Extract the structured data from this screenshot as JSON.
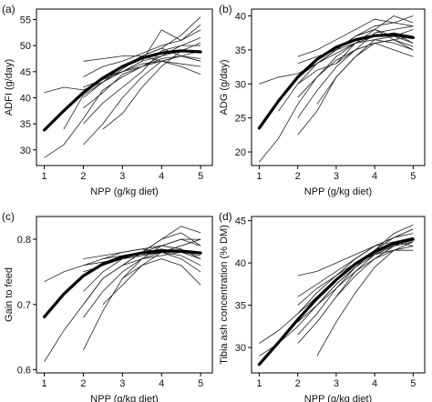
{
  "chart_data": [
    {
      "panel_label": "(a)",
      "type": "line",
      "xlabel": "NPP (g/kg diet)",
      "ylabel": "ADFI (g/day)",
      "xlim": [
        0.8,
        5.3
      ],
      "ylim": [
        27,
        57
      ],
      "xticks": [
        1,
        2,
        3,
        4,
        5
      ],
      "yticks": [
        30,
        35,
        40,
        45,
        50,
        55
      ],
      "grid": false,
      "fitted_curve": {
        "x": [
          1,
          1.5,
          2,
          2.5,
          3,
          3.5,
          4,
          4.5,
          5
        ],
        "y": [
          33.8,
          37.5,
          41.0,
          43.8,
          46.0,
          47.6,
          48.6,
          49.0,
          48.8
        ]
      },
      "individual_series": [
        {
          "x": [
            1,
            1.5,
            2,
            2.5,
            3,
            3.5,
            4,
            4.5,
            5
          ],
          "y": [
            28.5,
            31,
            36,
            41.5,
            44,
            46,
            47.5,
            48,
            49
          ]
        },
        {
          "x": [
            1,
            1.5,
            2,
            2.5,
            3,
            3.5,
            4,
            4.5,
            5
          ],
          "y": [
            41,
            42,
            41.5,
            43,
            45,
            46.5,
            47,
            48,
            47
          ]
        },
        {
          "x": [
            1.5,
            2,
            2.5,
            3,
            3.5,
            4,
            4.5,
            5
          ],
          "y": [
            34,
            40.5,
            43,
            45.5,
            48,
            49.5,
            52,
            55.5
          ]
        },
        {
          "x": [
            2,
            2.5,
            3,
            3.5,
            4,
            4.5,
            5
          ],
          "y": [
            31,
            35,
            40,
            44,
            47,
            48,
            47.5
          ]
        },
        {
          "x": [
            2,
            2.5,
            3,
            3.5,
            4,
            4.5,
            5
          ],
          "y": [
            47,
            47.5,
            48,
            48,
            47,
            46,
            44.5
          ]
        },
        {
          "x": [
            2,
            2.5,
            3,
            3.5,
            4,
            4.5,
            5
          ],
          "y": [
            44,
            46,
            47,
            48.5,
            50,
            51,
            53
          ]
        },
        {
          "x": [
            2,
            2.5,
            3,
            3.5,
            4,
            4.5,
            5
          ],
          "y": [
            38,
            41,
            44.5,
            46,
            48,
            50,
            51.5
          ]
        },
        {
          "x": [
            2,
            2.5,
            3,
            3.5,
            4,
            4.5,
            5
          ],
          "y": [
            42,
            43.5,
            45,
            46,
            47,
            46.5,
            46
          ]
        },
        {
          "x": [
            2,
            2.5,
            3,
            3.5,
            4,
            4.5,
            5
          ],
          "y": [
            35,
            39,
            42,
            45,
            49,
            50,
            50
          ]
        },
        {
          "x": [
            2.5,
            3,
            3.5,
            4,
            4.5,
            5
          ],
          "y": [
            34,
            37,
            42,
            46,
            49,
            50.5
          ]
        },
        {
          "x": [
            2.5,
            3,
            3.5,
            4,
            4.5,
            5
          ],
          "y": [
            44,
            45,
            47,
            48,
            49,
            49
          ]
        },
        {
          "x": [
            3,
            3.5,
            4,
            4.5,
            5
          ],
          "y": [
            45,
            47,
            53,
            51,
            54
          ]
        },
        {
          "x": [
            2,
            2.5,
            3,
            3.5,
            4,
            4.5,
            5
          ],
          "y": [
            40,
            43,
            46,
            48,
            49.5,
            48,
            47
          ]
        }
      ]
    },
    {
      "panel_label": "(b)",
      "type": "line",
      "xlabel": "NPP (g/kg diet)",
      "ylabel": "ADG (g/day)",
      "xlim": [
        0.8,
        5.3
      ],
      "ylim": [
        18,
        41
      ],
      "xticks": [
        1,
        2,
        3,
        4,
        5
      ],
      "yticks": [
        20,
        25,
        30,
        35,
        40
      ],
      "grid": false,
      "fitted_curve": {
        "x": [
          1,
          1.5,
          2,
          2.5,
          3,
          3.5,
          4,
          4.5,
          5
        ],
        "y": [
          23.5,
          27.5,
          31.0,
          33.6,
          35.4,
          36.5,
          37.1,
          37.2,
          36.8
        ]
      },
      "individual_series": [
        {
          "x": [
            1,
            1.5,
            2,
            2.5,
            3,
            3.5,
            4,
            4.5,
            5
          ],
          "y": [
            18.5,
            22,
            27,
            31,
            33.5,
            35,
            36,
            36.5,
            37
          ]
        },
        {
          "x": [
            1,
            1.5,
            2,
            2.5,
            3,
            3.5,
            4,
            4.5,
            5
          ],
          "y": [
            30,
            31,
            31.5,
            33,
            34.5,
            36,
            37,
            37.5,
            36
          ]
        },
        {
          "x": [
            1.5,
            2,
            2.5,
            3,
            3.5,
            4,
            4.5,
            5
          ],
          "y": [
            26,
            30,
            33,
            35,
            37,
            38.5,
            39,
            38.5
          ]
        },
        {
          "x": [
            2,
            2.5,
            3,
            3.5,
            4,
            4.5,
            5
          ],
          "y": [
            22.5,
            26,
            31,
            34,
            36,
            36.5,
            35.5
          ]
        },
        {
          "x": [
            2,
            2.5,
            3,
            3.5,
            4,
            4.5,
            5
          ],
          "y": [
            34,
            35,
            36.5,
            38,
            39.5,
            39,
            40
          ]
        },
        {
          "x": [
            2,
            2.5,
            3,
            3.5,
            4,
            4.5,
            5
          ],
          "y": [
            30,
            32,
            33,
            35,
            36,
            35,
            34
          ]
        },
        {
          "x": [
            2,
            2.5,
            3,
            3.5,
            4,
            4.5,
            5
          ],
          "y": [
            28,
            31,
            34,
            36,
            37,
            37.5,
            37
          ]
        },
        {
          "x": [
            2,
            2.5,
            3,
            3.5,
            4,
            4.5,
            5
          ],
          "y": [
            33,
            34,
            35,
            36,
            36.5,
            36,
            35
          ]
        },
        {
          "x": [
            2,
            2.5,
            3,
            3.5,
            4,
            4.5,
            5
          ],
          "y": [
            25,
            29,
            32.5,
            35,
            37.5,
            38,
            38.5
          ]
        },
        {
          "x": [
            2.5,
            3,
            3.5,
            4,
            4.5,
            5
          ],
          "y": [
            27,
            31,
            34,
            36.5,
            37,
            38
          ]
        },
        {
          "x": [
            2.5,
            3,
            3.5,
            4,
            4.5,
            5
          ],
          "y": [
            33,
            35,
            37,
            38,
            37,
            36
          ]
        },
        {
          "x": [
            3,
            3.5,
            4,
            4.5,
            5
          ],
          "y": [
            33,
            36,
            38,
            40,
            39
          ]
        },
        {
          "x": [
            2,
            2.5,
            3,
            3.5,
            4,
            4.5,
            5
          ],
          "y": [
            31,
            33,
            35,
            37,
            38,
            36.5,
            35
          ]
        }
      ]
    },
    {
      "panel_label": "(c)",
      "type": "line",
      "xlabel": "NPP (g/kg diet)",
      "ylabel": "Gain to feed",
      "xlim": [
        0.8,
        5.3
      ],
      "ylim": [
        0.595,
        0.835
      ],
      "xticks": [
        1,
        2,
        3,
        4,
        5
      ],
      "yticks": [
        0.6,
        0.7,
        0.8
      ],
      "grid": false,
      "fitted_curve": {
        "x": [
          1,
          1.5,
          2,
          2.5,
          3,
          3.5,
          4,
          4.5,
          5
        ],
        "y": [
          0.681,
          0.716,
          0.744,
          0.762,
          0.773,
          0.779,
          0.782,
          0.782,
          0.779
        ]
      },
      "individual_series": [
        {
          "x": [
            1,
            1.5,
            2,
            2.5,
            3,
            3.5,
            4,
            4.5,
            5
          ],
          "y": [
            0.612,
            0.66,
            0.7,
            0.74,
            0.76,
            0.77,
            0.775,
            0.78,
            0.78
          ]
        },
        {
          "x": [
            1,
            1.5,
            2,
            2.5,
            3,
            3.5,
            4,
            4.5,
            5
          ],
          "y": [
            0.735,
            0.75,
            0.76,
            0.765,
            0.77,
            0.775,
            0.78,
            0.78,
            0.775
          ]
        },
        {
          "x": [
            2,
            2.5,
            3,
            3.5,
            4,
            4.5,
            5
          ],
          "y": [
            0.63,
            0.69,
            0.74,
            0.77,
            0.79,
            0.8,
            0.8
          ]
        },
        {
          "x": [
            2,
            2.5,
            3,
            3.5,
            4,
            4.5,
            5
          ],
          "y": [
            0.77,
            0.775,
            0.78,
            0.785,
            0.79,
            0.785,
            0.77
          ]
        },
        {
          "x": [
            2,
            2.5,
            3,
            3.5,
            4,
            4.5,
            5
          ],
          "y": [
            0.72,
            0.75,
            0.77,
            0.78,
            0.8,
            0.82,
            0.81
          ]
        },
        {
          "x": [
            2,
            2.5,
            3,
            3.5,
            4,
            4.5,
            5
          ],
          "y": [
            0.68,
            0.72,
            0.75,
            0.77,
            0.78,
            0.775,
            0.76
          ]
        },
        {
          "x": [
            2,
            2.5,
            3,
            3.5,
            4,
            4.5,
            5
          ],
          "y": [
            0.75,
            0.76,
            0.77,
            0.775,
            0.78,
            0.79,
            0.8
          ]
        },
        {
          "x": [
            2,
            2.5,
            3,
            3.5,
            4,
            4.5,
            5
          ],
          "y": [
            0.7,
            0.74,
            0.76,
            0.78,
            0.79,
            0.8,
            0.79
          ]
        },
        {
          "x": [
            2.5,
            3,
            3.5,
            4,
            4.5,
            5
          ],
          "y": [
            0.7,
            0.73,
            0.76,
            0.78,
            0.79,
            0.8
          ]
        },
        {
          "x": [
            2.5,
            3,
            3.5,
            4,
            4.5,
            5
          ],
          "y": [
            0.77,
            0.78,
            0.785,
            0.78,
            0.77,
            0.75
          ]
        },
        {
          "x": [
            3,
            3.5,
            4,
            4.5,
            5
          ],
          "y": [
            0.76,
            0.78,
            0.8,
            0.81,
            0.79
          ]
        },
        {
          "x": [
            3,
            3.5,
            4,
            4.5,
            5
          ],
          "y": [
            0.74,
            0.76,
            0.77,
            0.76,
            0.73
          ]
        },
        {
          "x": [
            2,
            2.5,
            3,
            3.5,
            4,
            4.5,
            5
          ],
          "y": [
            0.76,
            0.77,
            0.775,
            0.78,
            0.785,
            0.78,
            0.77
          ]
        }
      ]
    },
    {
      "panel_label": "(d)",
      "type": "line",
      "xlabel": "NPP (g/kg diet)",
      "ylabel": "Tibia ash concentration (% DM)",
      "xlim": [
        0.8,
        5.3
      ],
      "ylim": [
        27,
        45.5
      ],
      "xticks": [
        1,
        2,
        3,
        4,
        5
      ],
      "yticks": [
        30,
        35,
        40,
        45
      ],
      "grid": false,
      "fitted_curve": {
        "x": [
          1,
          1.5,
          2,
          2.5,
          3,
          3.5,
          4,
          4.5,
          5
        ],
        "y": [
          28.0,
          30.6,
          33.3,
          35.8,
          38.0,
          39.9,
          41.3,
          42.3,
          42.8
        ]
      },
      "individual_series": [
        {
          "x": [
            1,
            1.5,
            2,
            2.5,
            3,
            3.5,
            4,
            4.5,
            5
          ],
          "y": [
            29,
            30.5,
            32.5,
            35,
            37.5,
            39.5,
            41,
            42,
            42.5
          ]
        },
        {
          "x": [
            1,
            1.5,
            2,
            2.5,
            3,
            3.5,
            4,
            4.5,
            5
          ],
          "y": [
            30.5,
            32,
            34,
            36.5,
            38.5,
            40.5,
            42,
            43,
            43.5
          ]
        },
        {
          "x": [
            2,
            2.5,
            3,
            3.5,
            4,
            4.5,
            5
          ],
          "y": [
            30.5,
            33,
            36,
            39,
            41,
            42,
            42.5
          ]
        },
        {
          "x": [
            2,
            2.5,
            3,
            3.5,
            4,
            4.5,
            5
          ],
          "y": [
            38.5,
            39,
            40,
            41,
            42,
            43,
            44
          ]
        },
        {
          "x": [
            2,
            2.5,
            3,
            3.5,
            4,
            4.5,
            5
          ],
          "y": [
            33,
            35,
            37.5,
            39.5,
            41.5,
            42.5,
            43
          ]
        },
        {
          "x": [
            2,
            2.5,
            3,
            3.5,
            4,
            4.5,
            5
          ],
          "y": [
            35,
            37,
            38.5,
            40,
            41,
            41.5,
            41.5
          ]
        },
        {
          "x": [
            2,
            2.5,
            3,
            3.5,
            4,
            4.5,
            5
          ],
          "y": [
            31.5,
            34,
            37,
            39.5,
            41.5,
            43,
            44
          ]
        },
        {
          "x": [
            2,
            2.5,
            3,
            3.5,
            4,
            4.5,
            5
          ],
          "y": [
            36,
            37.5,
            39,
            40.5,
            42,
            42.5,
            42
          ]
        },
        {
          "x": [
            2.5,
            3,
            3.5,
            4,
            4.5,
            5
          ],
          "y": [
            29,
            33,
            36.5,
            39.5,
            41.5,
            42.5
          ]
        },
        {
          "x": [
            2.5,
            3,
            3.5,
            4,
            4.5,
            5
          ],
          "y": [
            35,
            37,
            39,
            40.5,
            41.5,
            42
          ]
        },
        {
          "x": [
            3,
            3.5,
            4,
            4.5,
            5
          ],
          "y": [
            36,
            38.5,
            40.5,
            42,
            43
          ]
        },
        {
          "x": [
            2,
            2.5,
            3,
            3.5,
            4,
            4.5,
            5
          ],
          "y": [
            34,
            36,
            38,
            40,
            41.5,
            43.5,
            44.5
          ]
        }
      ]
    }
  ]
}
